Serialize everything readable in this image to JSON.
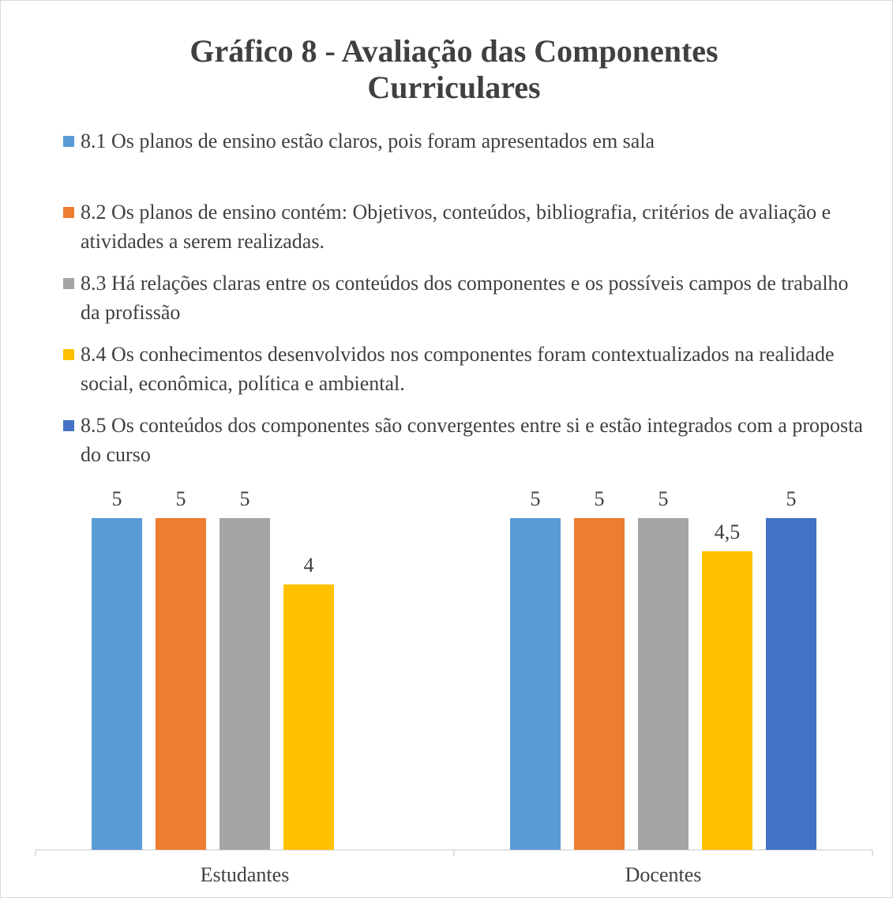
{
  "chart_data": {
    "type": "bar",
    "title": "Gráfico 8 - Avaliação das Componentes Curriculares",
    "categories": [
      "Estudantes",
      "Docentes"
    ],
    "series": [
      {
        "name": "8.1 Os planos de ensino estão claros, pois foram apresentados em sala",
        "color": "#5b9bd5",
        "values": [
          5,
          5
        ]
      },
      {
        "name": "8.2 Os planos de ensino contém: Objetivos, conteúdos, bibliografia, critérios de avaliação e atividades a serem realizadas.",
        "color": "#ed7d31",
        "values": [
          5,
          5
        ]
      },
      {
        "name": "8.3 Há relações claras entre os conteúdos dos componentes e os possíveis campos de trabalho da profissão",
        "color": "#a5a5a5",
        "values": [
          5,
          5
        ]
      },
      {
        "name": "8.4 Os conhecimentos desenvolvidos nos componentes foram contextualizados na realidade social, econômica, política e ambiental.",
        "color": "#ffc000",
        "values": [
          4,
          4.5
        ],
        "value_labels": [
          "4",
          "4,5"
        ]
      },
      {
        "name": "8.5 Os conteúdos dos componentes são convergentes entre si e estão integrados com a proposta do curso",
        "color": "#4472c4",
        "values": [
          null,
          5
        ]
      }
    ],
    "ylim": [
      0,
      5
    ],
    "legend": "top"
  }
}
